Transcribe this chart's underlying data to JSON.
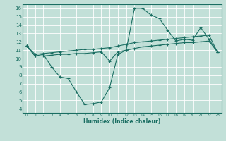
{
  "xlabel": "Humidex (Indice chaleur)",
  "xlim": [
    -0.5,
    23.5
  ],
  "ylim": [
    3.5,
    16.5
  ],
  "xticks": [
    0,
    1,
    2,
    3,
    4,
    5,
    6,
    7,
    8,
    9,
    10,
    11,
    12,
    13,
    14,
    15,
    16,
    17,
    18,
    19,
    20,
    21,
    22,
    23
  ],
  "yticks": [
    4,
    5,
    6,
    7,
    8,
    9,
    10,
    11,
    12,
    13,
    14,
    15,
    16
  ],
  "bg_color": "#c2e0d8",
  "grid_color": "#ffffff",
  "line_color": "#1a6e62",
  "lines": [
    {
      "x": [
        0,
        1,
        2,
        3,
        4,
        5,
        6,
        7,
        8,
        9,
        10,
        11,
        12,
        13,
        14,
        15,
        16,
        17,
        18,
        19,
        20,
        21,
        22,
        23
      ],
      "y": [
        11.5,
        10.3,
        10.5,
        9.0,
        7.8,
        7.6,
        6.0,
        4.5,
        4.6,
        4.8,
        6.5,
        10.5,
        11.0,
        16.0,
        16.0,
        15.2,
        14.8,
        13.4,
        12.1,
        12.3,
        12.2,
        13.7,
        12.3,
        10.8
      ]
    },
    {
      "x": [
        0,
        1,
        2,
        3,
        4,
        5,
        6,
        7,
        8,
        9,
        10,
        11,
        12,
        13,
        14,
        15,
        16,
        17,
        18,
        19,
        20,
        21,
        22,
        23
      ],
      "y": [
        11.5,
        10.5,
        10.6,
        10.7,
        10.8,
        10.9,
        11.0,
        11.1,
        11.1,
        11.2,
        11.3,
        11.5,
        11.7,
        11.9,
        12.0,
        12.1,
        12.2,
        12.3,
        12.4,
        12.5,
        12.6,
        12.7,
        12.8,
        10.8
      ]
    },
    {
      "x": [
        0,
        1,
        2,
        3,
        4,
        5,
        6,
        7,
        8,
        9,
        10,
        11,
        12,
        13,
        14,
        15,
        16,
        17,
        18,
        19,
        20,
        21,
        22,
        23
      ],
      "y": [
        11.5,
        10.3,
        10.3,
        10.4,
        10.5,
        10.5,
        10.6,
        10.6,
        10.7,
        10.8,
        9.7,
        10.8,
        11.0,
        11.2,
        11.4,
        11.5,
        11.6,
        11.7,
        11.8,
        11.9,
        11.9,
        12.0,
        12.1,
        10.8
      ]
    }
  ]
}
